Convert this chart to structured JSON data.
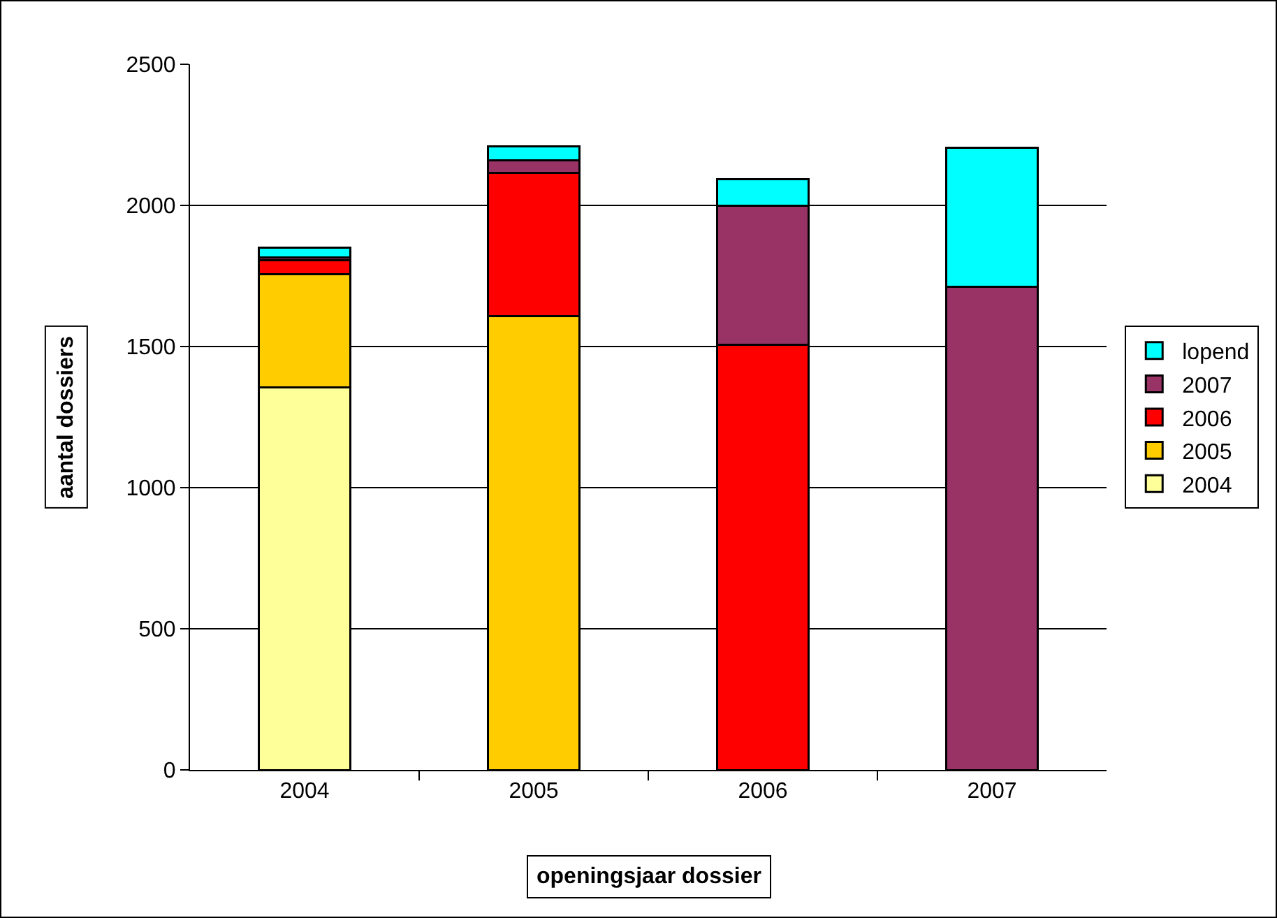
{
  "chart_data": {
    "type": "bar",
    "stacked": true,
    "xlabel": "openingsjaar dossier",
    "ylabel": "aantal dossiers",
    "categories": [
      "2004",
      "2005",
      "2006",
      "2007"
    ],
    "series": [
      {
        "name": "2004",
        "color": "#ffff99",
        "values": [
          1355,
          null,
          null,
          null
        ]
      },
      {
        "name": "2005",
        "color": "#ffcc00",
        "values": [
          400,
          1608,
          null,
          null
        ]
      },
      {
        "name": "2006",
        "color": "#ff0000",
        "values": [
          50,
          506,
          1506,
          null
        ]
      },
      {
        "name": "2007",
        "color": "#993366",
        "values": [
          10,
          45,
          492,
          1711
        ]
      },
      {
        "name": "lopend",
        "color": "#00ffff",
        "values": [
          35,
          50,
          95,
          493
        ]
      }
    ],
    "ylim": [
      0,
      2500
    ],
    "yticks": [
      0,
      500,
      1000,
      1500,
      2000,
      2500
    ],
    "grid": "y",
    "legend": "right"
  }
}
